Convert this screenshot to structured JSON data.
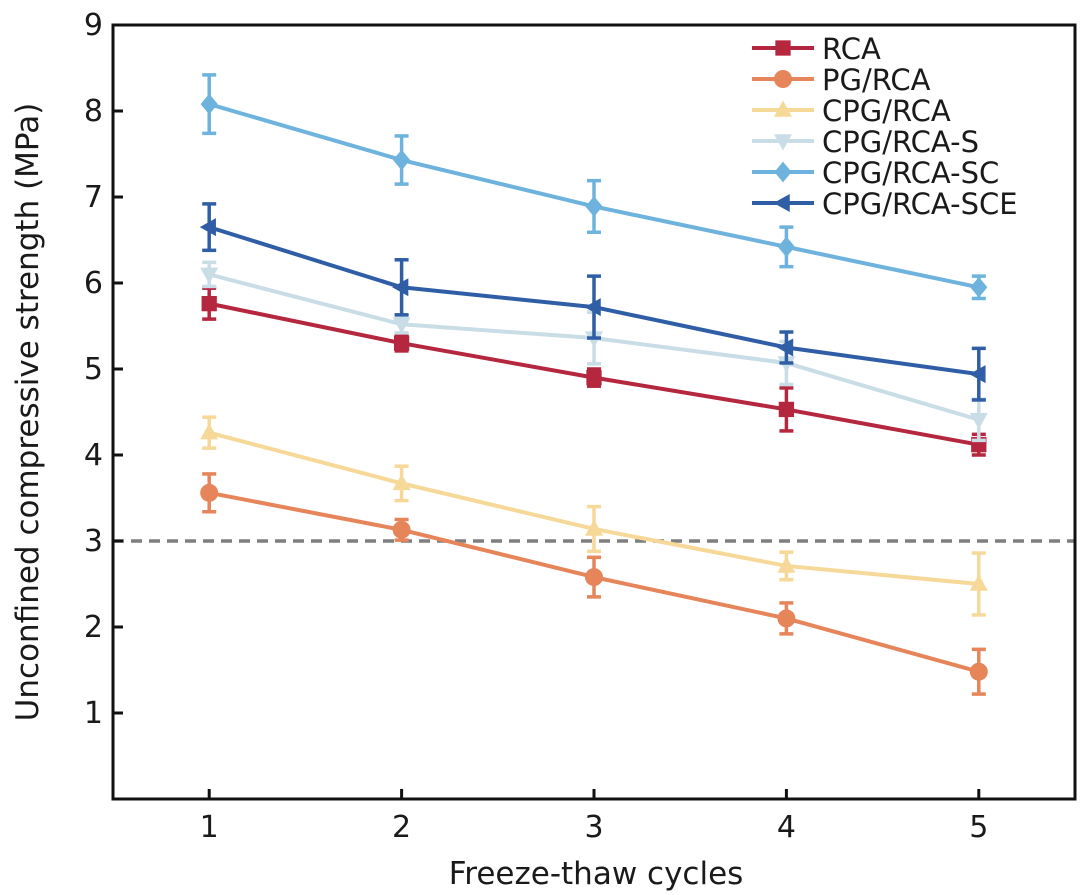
{
  "chart_data": {
    "type": "line",
    "title": "",
    "xlabel": "Freeze-thaw cycles",
    "ylabel": "Unconfined compressive strength (MPa)",
    "x": [
      1,
      2,
      3,
      4,
      5
    ],
    "xticks": [
      "1",
      "2",
      "3",
      "4",
      "5"
    ],
    "xlim": [
      0.5,
      5.5
    ],
    "ylim": [
      0,
      9
    ],
    "yticks": [
      "1",
      "2",
      "3",
      "4",
      "5",
      "6",
      "7",
      "8",
      "9"
    ],
    "grid": false,
    "legend_position": "top-right",
    "reference_line": {
      "y": 3,
      "style": "dashed",
      "color": "#7f7f7f"
    },
    "series": [
      {
        "name": "RCA",
        "color": "#b5263f",
        "marker": "square",
        "values": [
          5.76,
          5.3,
          4.9,
          4.53,
          4.12
        ],
        "errors": [
          0.18,
          0.09,
          0.1,
          0.25,
          0.12
        ]
      },
      {
        "name": "PG/RCA",
        "color": "#e6845a",
        "marker": "circle",
        "values": [
          3.56,
          3.13,
          2.58,
          2.1,
          1.48
        ],
        "errors": [
          0.22,
          0.12,
          0.23,
          0.18,
          0.26
        ]
      },
      {
        "name": "CPG/RCA",
        "color": "#f6d898",
        "marker": "triangle-up",
        "values": [
          4.26,
          3.67,
          3.14,
          2.71,
          2.5
        ],
        "errors": [
          0.18,
          0.2,
          0.26,
          0.16,
          0.36
        ]
      },
      {
        "name": "CPG/RCA-S",
        "color": "#c9dde6",
        "marker": "triangle-down",
        "values": [
          6.1,
          5.52,
          5.36,
          5.07,
          4.41
        ],
        "errors": [
          0.14,
          0.1,
          0.3,
          0.25,
          0.24
        ]
      },
      {
        "name": "CPG/RCA-SC",
        "color": "#6db3dd",
        "marker": "diamond",
        "values": [
          8.08,
          7.43,
          6.89,
          6.42,
          5.95
        ],
        "errors": [
          0.34,
          0.28,
          0.3,
          0.23,
          0.13
        ]
      },
      {
        "name": "CPG/RCA-SCE",
        "color": "#2f5ea6",
        "marker": "triangle-left",
        "values": [
          6.65,
          5.95,
          5.72,
          5.25,
          4.94
        ],
        "errors": [
          0.27,
          0.32,
          0.36,
          0.18,
          0.3
        ]
      }
    ]
  }
}
